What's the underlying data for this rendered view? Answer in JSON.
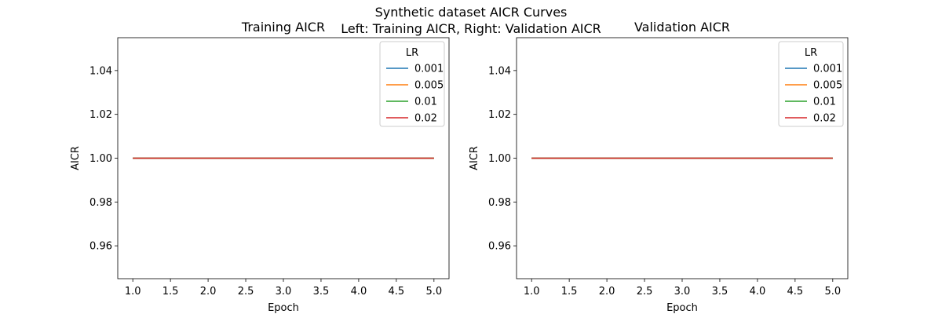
{
  "figure": {
    "suptitle_line1": "Synthetic dataset AICR Curves",
    "suptitle_line2": "Left: Training AICR, Right: Validation AICR"
  },
  "chart_data": [
    {
      "type": "line",
      "title": "Training AICR",
      "xlabel": "Epoch",
      "ylabel": "AICR",
      "xlim": [
        0.8,
        5.2
      ],
      "ylim": [
        0.945,
        1.055
      ],
      "xticks": [
        1.0,
        1.5,
        2.0,
        2.5,
        3.0,
        3.5,
        4.0,
        4.5,
        5.0
      ],
      "yticks": [
        0.96,
        0.98,
        1.0,
        1.02,
        1.04
      ],
      "grid": false,
      "legend": {
        "title": "LR",
        "placement": "top-right"
      },
      "x": [
        1,
        2,
        3,
        4,
        5
      ],
      "series": [
        {
          "name": "0.001",
          "color": "#1f77b4",
          "values": [
            1.0,
            1.0,
            1.0,
            1.0,
            1.0
          ]
        },
        {
          "name": "0.005",
          "color": "#ff7f0e",
          "values": [
            1.0,
            1.0,
            1.0,
            1.0,
            1.0
          ]
        },
        {
          "name": "0.01",
          "color": "#2ca02c",
          "values": [
            1.0,
            1.0,
            1.0,
            1.0,
            1.0
          ]
        },
        {
          "name": "0.02",
          "color": "#d62728",
          "values": [
            1.0,
            1.0,
            1.0,
            1.0,
            1.0
          ]
        }
      ]
    },
    {
      "type": "line",
      "title": "Validation AICR",
      "xlabel": "Epoch",
      "ylabel": "AICR",
      "xlim": [
        0.8,
        5.2
      ],
      "ylim": [
        0.945,
        1.055
      ],
      "xticks": [
        1.0,
        1.5,
        2.0,
        2.5,
        3.0,
        3.5,
        4.0,
        4.5,
        5.0
      ],
      "yticks": [
        0.96,
        0.98,
        1.0,
        1.02,
        1.04
      ],
      "grid": false,
      "legend": {
        "title": "LR",
        "placement": "top-right"
      },
      "x": [
        1,
        2,
        3,
        4,
        5
      ],
      "series": [
        {
          "name": "0.001",
          "color": "#1f77b4",
          "values": [
            1.0,
            1.0,
            1.0,
            1.0,
            1.0
          ]
        },
        {
          "name": "0.005",
          "color": "#ff7f0e",
          "values": [
            1.0,
            1.0,
            1.0,
            1.0,
            1.0
          ]
        },
        {
          "name": "0.01",
          "color": "#2ca02c",
          "values": [
            1.0,
            1.0,
            1.0,
            1.0,
            1.0
          ]
        },
        {
          "name": "0.02",
          "color": "#d62728",
          "values": [
            1.0,
            1.0,
            1.0,
            1.0,
            1.0
          ]
        }
      ]
    }
  ]
}
